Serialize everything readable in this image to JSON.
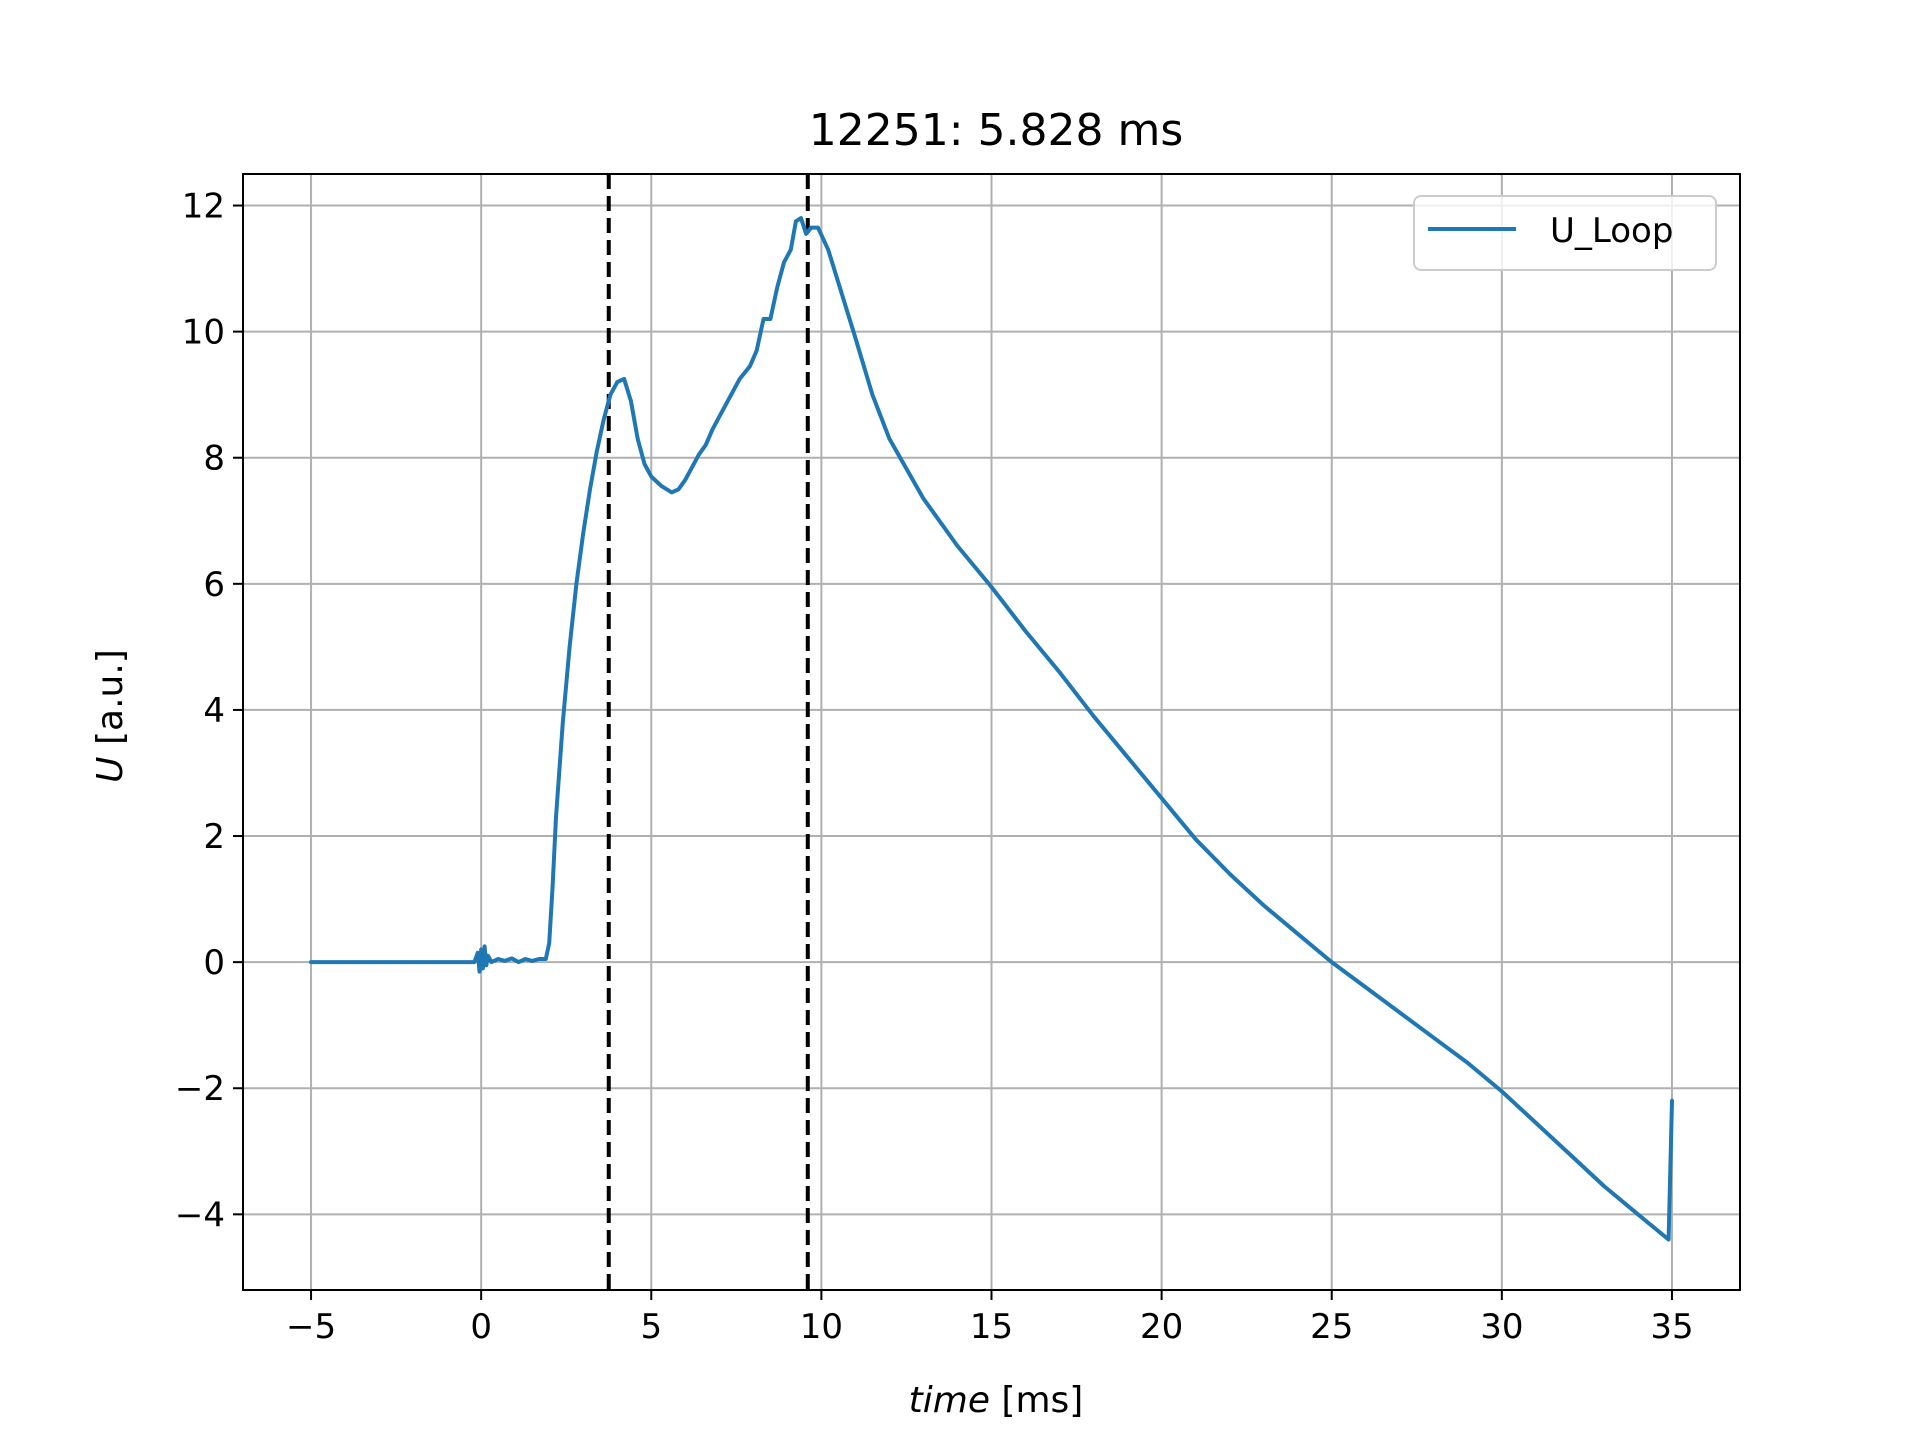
{
  "chart_data": {
    "type": "line",
    "title": "12251: 5.828 ms",
    "xlabel": {
      "italic": "time",
      "rest": " [ms]"
    },
    "ylabel": {
      "italic": "U",
      "rest": " [a.u.]"
    },
    "xlim": [
      -7,
      37
    ],
    "ylim": [
      -5.2,
      12.5
    ],
    "xticks": [
      -5,
      0,
      5,
      10,
      15,
      20,
      25,
      30,
      35
    ],
    "xtick_labels": [
      "−5",
      "0",
      "5",
      "10",
      "15",
      "20",
      "25",
      "30",
      "35"
    ],
    "yticks": [
      -4,
      -2,
      0,
      2,
      4,
      6,
      8,
      10,
      12
    ],
    "ytick_labels": [
      "−4",
      "−2",
      "0",
      "2",
      "4",
      "6",
      "8",
      "10",
      "12"
    ],
    "grid": true,
    "legend_position": "top-right",
    "series": [
      {
        "name": "U_Loop",
        "color": "#1f77b4",
        "points": [
          [
            -5,
            0
          ],
          [
            -4,
            0
          ],
          [
            -3,
            0
          ],
          [
            -2,
            0
          ],
          [
            -1,
            0
          ],
          [
            -0.2,
            0
          ],
          [
            -0.1,
            0.15
          ],
          [
            -0.05,
            -0.15
          ],
          [
            0.0,
            0.2
          ],
          [
            0.05,
            -0.1
          ],
          [
            0.1,
            0.25
          ],
          [
            0.15,
            -0.05
          ],
          [
            0.2,
            0.1
          ],
          [
            0.3,
            0.0
          ],
          [
            0.5,
            0.05
          ],
          [
            0.7,
            0.02
          ],
          [
            0.9,
            0.06
          ],
          [
            1.1,
            0.0
          ],
          [
            1.3,
            0.05
          ],
          [
            1.5,
            0.02
          ],
          [
            1.7,
            0.05
          ],
          [
            1.9,
            0.05
          ],
          [
            2.0,
            0.3
          ],
          [
            2.1,
            1.2
          ],
          [
            2.2,
            2.3
          ],
          [
            2.4,
            3.8
          ],
          [
            2.6,
            5.0
          ],
          [
            2.8,
            6.0
          ],
          [
            3.0,
            6.8
          ],
          [
            3.2,
            7.5
          ],
          [
            3.4,
            8.1
          ],
          [
            3.6,
            8.6
          ],
          [
            3.8,
            9.0
          ],
          [
            4.0,
            9.2
          ],
          [
            4.2,
            9.25
          ],
          [
            4.4,
            8.9
          ],
          [
            4.6,
            8.3
          ],
          [
            4.8,
            7.9
          ],
          [
            5.0,
            7.7
          ],
          [
            5.3,
            7.55
          ],
          [
            5.6,
            7.45
          ],
          [
            5.8,
            7.5
          ],
          [
            6.0,
            7.65
          ],
          [
            6.2,
            7.85
          ],
          [
            6.4,
            8.05
          ],
          [
            6.6,
            8.2
          ],
          [
            6.8,
            8.45
          ],
          [
            7.0,
            8.65
          ],
          [
            7.3,
            8.95
          ],
          [
            7.6,
            9.25
          ],
          [
            7.9,
            9.45
          ],
          [
            8.1,
            9.7
          ],
          [
            8.3,
            10.2
          ],
          [
            8.5,
            10.2
          ],
          [
            8.7,
            10.7
          ],
          [
            8.9,
            11.1
          ],
          [
            9.1,
            11.3
          ],
          [
            9.25,
            11.75
          ],
          [
            9.4,
            11.8
          ],
          [
            9.55,
            11.55
          ],
          [
            9.7,
            11.65
          ],
          [
            9.9,
            11.65
          ],
          [
            10.2,
            11.3
          ],
          [
            10.6,
            10.6
          ],
          [
            11.0,
            9.9
          ],
          [
            11.5,
            9.0
          ],
          [
            12.0,
            8.3
          ],
          [
            13.0,
            7.35
          ],
          [
            14.0,
            6.6
          ],
          [
            15.0,
            5.95
          ],
          [
            16.0,
            5.25
          ],
          [
            17.0,
            4.6
          ],
          [
            18.0,
            3.9
          ],
          [
            19.0,
            3.25
          ],
          [
            20.0,
            2.6
          ],
          [
            21.0,
            1.95
          ],
          [
            22.0,
            1.4
          ],
          [
            23.0,
            0.9
          ],
          [
            24.0,
            0.45
          ],
          [
            25.0,
            0.0
          ],
          [
            26.0,
            -0.4
          ],
          [
            27.0,
            -0.8
          ],
          [
            28.0,
            -1.2
          ],
          [
            29.0,
            -1.6
          ],
          [
            30.0,
            -2.05
          ],
          [
            31.0,
            -2.55
          ],
          [
            32.0,
            -3.05
          ],
          [
            33.0,
            -3.55
          ],
          [
            34.0,
            -4.0
          ],
          [
            34.9,
            -4.4
          ],
          [
            35.0,
            -2.2
          ]
        ]
      }
    ],
    "vlines": [
      {
        "x": 3.75,
        "style": "dashed",
        "color": "#000000"
      },
      {
        "x": 9.6,
        "style": "dashed",
        "color": "#000000"
      }
    ]
  }
}
